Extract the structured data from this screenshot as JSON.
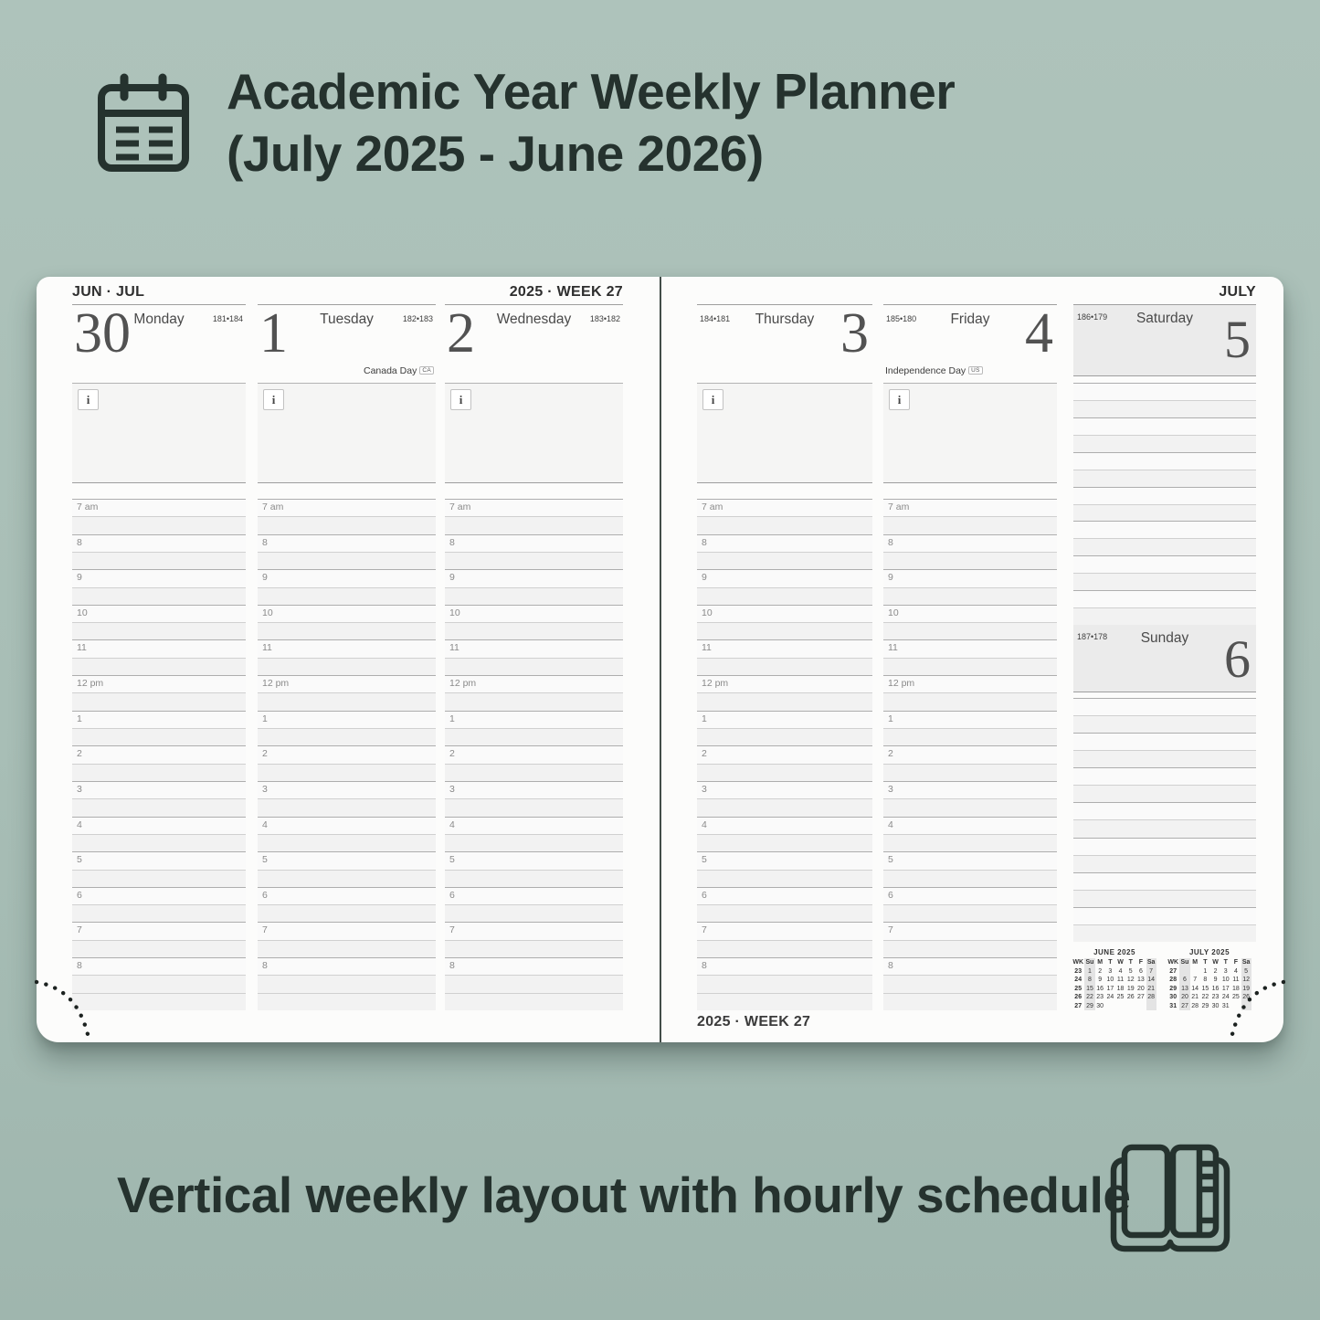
{
  "header": {
    "icon": "calendar-icon",
    "title_line1": "Academic Year Weekly Planner",
    "title_line2": "(July 2025 - June 2026)"
  },
  "footer": {
    "caption": "Vertical weekly layout with hourly schedule",
    "icon": "open-notebook-icon"
  },
  "planner": {
    "left_page": {
      "month_label": "JUN · JUL",
      "week_label": "2025 · WEEK 27",
      "days": [
        {
          "number": "30",
          "name": "Monday",
          "sun": "181•184",
          "holiday": null
        },
        {
          "number": "1",
          "name": "Tuesday",
          "sun": "182•183",
          "holiday": {
            "text": "Canada Day",
            "badge": "CA"
          }
        },
        {
          "number": "2",
          "name": "Wednesday",
          "sun": "183•182",
          "holiday": null
        }
      ]
    },
    "right_page": {
      "month_label": "JULY",
      "week_label": "2025 · WEEK 27",
      "days": [
        {
          "number": "3",
          "name": "Thursday",
          "sun": "184•181",
          "holiday": null
        },
        {
          "number": "4",
          "name": "Friday",
          "sun": "185•180",
          "holiday": {
            "text": "Independence Day",
            "badge": "US"
          }
        }
      ],
      "weekend_days": [
        {
          "number": "5",
          "name": "Saturday",
          "sun": "186•179"
        },
        {
          "number": "6",
          "name": "Sunday",
          "sun": "187•178"
        }
      ]
    },
    "hours": [
      "7 am",
      "8",
      "9",
      "10",
      "11",
      "12 pm",
      "1",
      "2",
      "3",
      "4",
      "5",
      "6",
      "7",
      "8"
    ],
    "info_icon": "i",
    "mini_calendars": [
      {
        "title": "JUNE 2025",
        "headers": [
          "WK",
          "Su",
          "M",
          "T",
          "W",
          "T",
          "F",
          "Sa"
        ],
        "weeks": [
          [
            "23",
            "1",
            "2",
            "3",
            "4",
            "5",
            "6",
            "7"
          ],
          [
            "24",
            "8",
            "9",
            "10",
            "11",
            "12",
            "13",
            "14"
          ],
          [
            "25",
            "15",
            "16",
            "17",
            "18",
            "19",
            "20",
            "21"
          ],
          [
            "26",
            "22",
            "23",
            "24",
            "25",
            "26",
            "27",
            "28"
          ],
          [
            "27",
            "29",
            "30",
            "",
            "",
            "",
            "",
            ""
          ]
        ]
      },
      {
        "title": "JULY 2025",
        "headers": [
          "WK",
          "Su",
          "M",
          "T",
          "W",
          "T",
          "F",
          "Sa"
        ],
        "weeks": [
          [
            "27",
            "",
            "",
            "1",
            "2",
            "3",
            "4",
            "5"
          ],
          [
            "28",
            "6",
            "7",
            "8",
            "9",
            "10",
            "11",
            "12"
          ],
          [
            "29",
            "13",
            "14",
            "15",
            "16",
            "17",
            "18",
            "19"
          ],
          [
            "30",
            "20",
            "21",
            "22",
            "23",
            "24",
            "25",
            "26"
          ],
          [
            "31",
            "27",
            "28",
            "29",
            "30",
            "31",
            "",
            ""
          ]
        ]
      }
    ]
  },
  "colors": {
    "background": "#a8beb6",
    "ink": "#25322e",
    "page": "#fcfcfb",
    "strong_line": "#9e9e9e"
  }
}
